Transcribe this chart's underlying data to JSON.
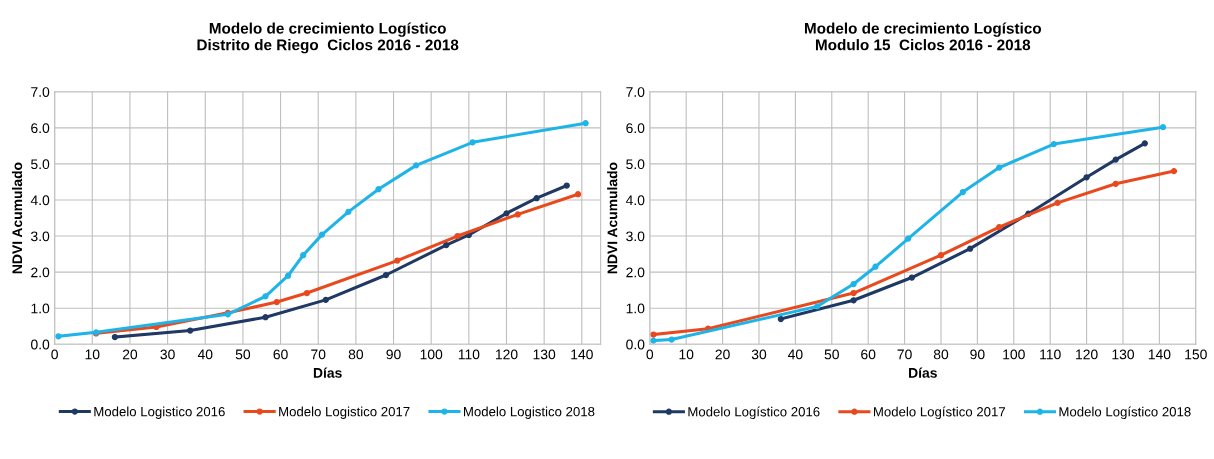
{
  "chart_data": [
    {
      "type": "line",
      "title": "Modelo de crecimiento Logístico\nDistrito de Riego  Ciclos 2016 - 2018",
      "xlabel": "Días",
      "ylabel": "NDVI Acumulado",
      "xlim": [
        0,
        145
      ],
      "xticks": [
        0,
        10,
        20,
        30,
        40,
        50,
        60,
        70,
        80,
        90,
        100,
        110,
        120,
        130,
        140
      ],
      "ylim": [
        0,
        7
      ],
      "yticks": [
        {
          "value": 0,
          "label": "0.0"
        },
        {
          "value": 1,
          "label": "1.0"
        },
        {
          "value": 2,
          "label": "2.0"
        },
        {
          "value": 3,
          "label": "3.0"
        },
        {
          "value": 4,
          "label": "4.0"
        },
        {
          "value": 5,
          "label": "5.0"
        },
        {
          "value": 6,
          "label": "6.0"
        },
        {
          "value": 7,
          "label": "7.0"
        }
      ],
      "grid": true,
      "legend": "bottom",
      "marker": "circle",
      "line_style": "solid",
      "series": [
        {
          "name": "Modelo Logistico 2016",
          "color": "#1f3864",
          "x": [
            16,
            36,
            56,
            72,
            88,
            104,
            110,
            120,
            128,
            136
          ],
          "values": [
            0.2,
            0.38,
            0.75,
            1.23,
            1.92,
            2.75,
            3.03,
            3.63,
            4.05,
            4.4
          ]
        },
        {
          "name": "Modelo Logistico 2017",
          "color": "#e8491d",
          "x": [
            11,
            27,
            46,
            59,
            67,
            91,
            107,
            123,
            139
          ],
          "values": [
            0.3,
            0.48,
            0.87,
            1.17,
            1.42,
            2.32,
            3.0,
            3.6,
            4.16
          ]
        },
        {
          "name": "Modelo Logistico 2018",
          "color": "#1fb4e8",
          "x": [
            1,
            11,
            46,
            56,
            62,
            66,
            71,
            78,
            86,
            96,
            111,
            141
          ],
          "values": [
            0.22,
            0.33,
            0.83,
            1.33,
            1.9,
            2.47,
            3.04,
            3.67,
            4.3,
            4.96,
            5.6,
            6.13
          ]
        }
      ]
    },
    {
      "type": "line",
      "title": "Modelo de crecimiento Logístico\nModulo 15  Ciclos 2016 - 2018",
      "xlabel": "Días",
      "ylabel": "NDVI Acumulado",
      "xlim": [
        0,
        150
      ],
      "xticks": [
        0,
        10,
        20,
        30,
        40,
        50,
        60,
        70,
        80,
        90,
        100,
        110,
        120,
        130,
        140,
        150
      ],
      "ylim": [
        0,
        7
      ],
      "yticks": [
        {
          "value": 0,
          "label": "0.0"
        },
        {
          "value": 1,
          "label": "1.0"
        },
        {
          "value": 2,
          "label": "2.0"
        },
        {
          "value": 3,
          "label": "3.0"
        },
        {
          "value": 4,
          "label": "4.0"
        },
        {
          "value": 5,
          "label": "5.0"
        },
        {
          "value": 6,
          "label": "6.0"
        },
        {
          "value": 7,
          "label": "7.0"
        }
      ],
      "grid": true,
      "legend": "bottom",
      "marker": "circle",
      "line_style": "solid",
      "series": [
        {
          "name": "Modelo Logístico 2016",
          "color": "#1f3864",
          "x": [
            36,
            56,
            72,
            88,
            104,
            120,
            128,
            136
          ],
          "values": [
            0.7,
            1.22,
            1.85,
            2.65,
            3.62,
            4.63,
            5.12,
            5.57
          ]
        },
        {
          "name": "Modelo Logístico 2017",
          "color": "#e8491d",
          "x": [
            1,
            16,
            56,
            80,
            96,
            112,
            128,
            144
          ],
          "values": [
            0.27,
            0.43,
            1.42,
            2.47,
            3.25,
            3.92,
            4.45,
            4.8
          ]
        },
        {
          "name": "Modelo Logístico 2018",
          "color": "#1fb4e8",
          "x": [
            1,
            6,
            46,
            56,
            62,
            71,
            86,
            96,
            111,
            141
          ],
          "values": [
            0.1,
            0.13,
            1.05,
            1.67,
            2.15,
            2.93,
            4.22,
            4.9,
            5.55,
            6.02
          ]
        }
      ]
    }
  ]
}
